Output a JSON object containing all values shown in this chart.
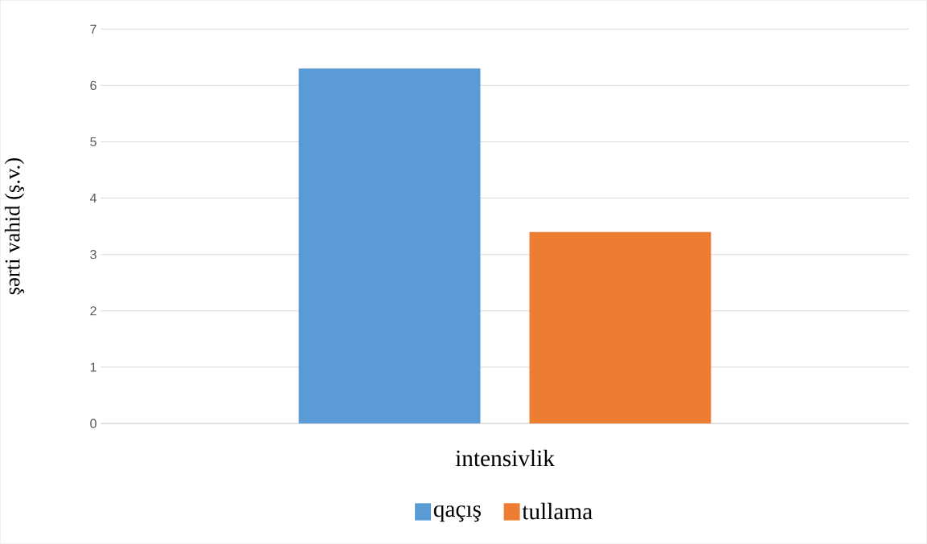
{
  "chart_data": {
    "type": "bar",
    "categories": [
      "intensivlik"
    ],
    "ylabel": "şərti vahid (ş.v.)",
    "series": [
      {
        "name": "qaçış",
        "color": "#5b9bd5",
        "values": [
          6.3
        ]
      },
      {
        "name": "tullama",
        "color": "#ed7d31",
        "values": [
          3.4
        ]
      }
    ],
    "ylim": [
      0,
      7
    ],
    "yticks": [
      0,
      1,
      2,
      3,
      4,
      5,
      6,
      7
    ],
    "grid": "y",
    "legend": "bottom"
  }
}
